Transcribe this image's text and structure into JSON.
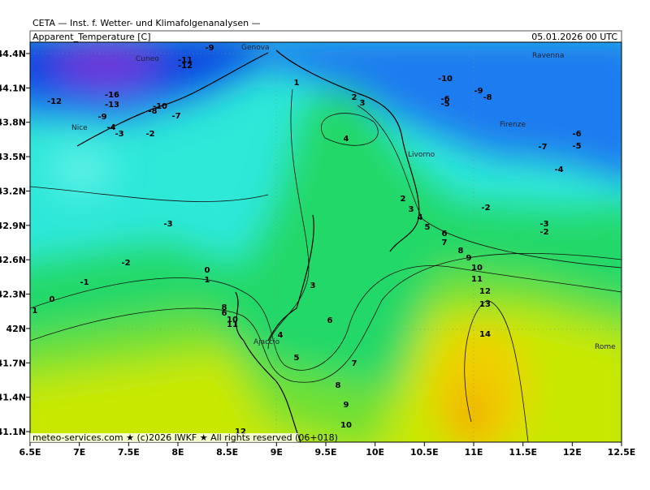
{
  "header": {
    "title": "CETA — Inst. f. Wetter- und Klimafolgenanalysen —",
    "field": "Apparent_Temperature [C]",
    "date": "05.01.2026 00 UTC"
  },
  "axes": {
    "x_labels": [
      "6.5E",
      "7E",
      "7.5E",
      "8E",
      "8.5E",
      "9E",
      "9.5E",
      "10E",
      "10.5E",
      "11E",
      "11.5E",
      "12E",
      "12.5E"
    ],
    "y_labels": [
      "44.4N",
      "44.1N",
      "43.8N",
      "43.5N",
      "43.2N",
      "42.9N",
      "42.6N",
      "42.3N",
      "42N",
      "41.7N",
      "41.4N",
      "41.1N"
    ]
  },
  "places": [
    "Genova",
    "Cuneo",
    "Nice",
    "Ravenna",
    "Firenze",
    "Livorno",
    "Ajaccio",
    "Rome"
  ],
  "contour_labels": [
    -9,
    -11,
    -12,
    -12,
    -16,
    -13,
    -10,
    -8,
    -7,
    -9,
    -4,
    -3,
    -2,
    1,
    2,
    3,
    4,
    -10,
    -9,
    -8,
    -6,
    -5,
    -7,
    -6,
    -5,
    -4,
    -2,
    -3,
    -2,
    -3,
    -2,
    -1,
    0,
    1,
    0,
    1,
    2,
    3,
    4,
    5,
    6,
    7,
    8,
    9,
    10,
    11,
    12,
    13,
    14,
    3,
    4,
    5,
    6,
    7,
    8,
    9,
    10,
    12,
    10,
    11,
    8,
    6
  ],
  "credit": "meteo-services.com ★ (c)2026 IWKF ★ All rights reserved (06+018)"
}
